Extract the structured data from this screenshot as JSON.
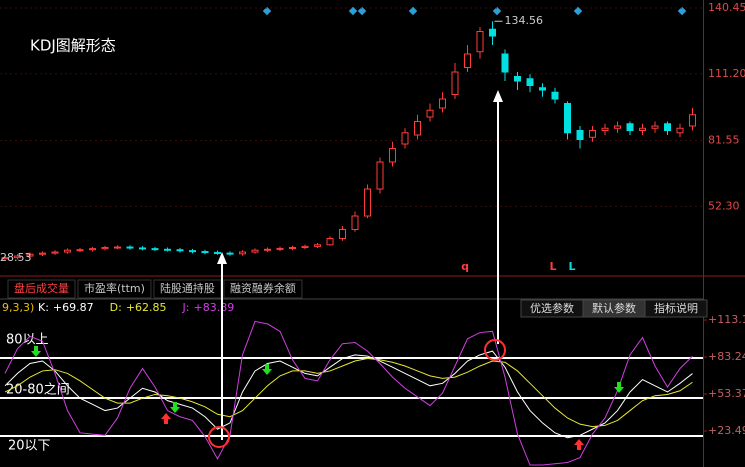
{
  "chart_data": [
    {
      "type": "candlestick",
      "title": "KDJ图解形态",
      "ylim": [
        24,
        144
      ],
      "yticks": [
        140.45,
        {
          "value": 111.2,
          "label": "111.20"
        },
        81.55,
        {
          "value": 52.3,
          "label": "52.30"
        }
      ],
      "grid": true,
      "up_color": "#ff3b3b",
      "down_color": "#00e0e0",
      "candles": {
        "open": [
          29,
          29.5,
          30.2,
          31,
          31.5,
          32,
          32.8,
          33,
          33.5,
          34,
          34.2,
          33.8,
          33.5,
          33.2,
          33,
          32.6,
          32.2,
          31.8,
          31.5,
          31.2,
          32,
          32.8,
          33.2,
          33.6,
          34,
          34.5,
          35.2,
          38,
          42,
          48,
          60,
          72,
          80,
          84,
          92,
          96,
          102,
          114,
          121,
          131,
          120,
          110,
          109,
          105,
          103,
          98,
          86,
          83,
          86,
          87,
          89,
          86,
          87,
          89,
          85,
          88
        ],
        "close": [
          29.5,
          30.2,
          31,
          31.5,
          32,
          32.8,
          33,
          33.5,
          34,
          34.2,
          33.8,
          33.5,
          33.2,
          33,
          32.6,
          32.2,
          31.8,
          31.5,
          31.2,
          32,
          32.8,
          33.2,
          33.6,
          34,
          34.5,
          35.2,
          38,
          42,
          48,
          60,
          72,
          78,
          85,
          90,
          95,
          100,
          112,
          120,
          130,
          128,
          112,
          108,
          106,
          104,
          100,
          85,
          82,
          86,
          87,
          88,
          86,
          87,
          88,
          86,
          87,
          93
        ],
        "high": [
          30.3,
          31,
          31.8,
          32.3,
          32.8,
          33.6,
          33.8,
          34.3,
          34.8,
          35,
          35,
          34.6,
          34.3,
          34,
          33.8,
          33.4,
          33,
          32.6,
          32.3,
          32.8,
          33.6,
          34,
          34.4,
          34.8,
          35.3,
          36,
          39,
          43.5,
          50,
          62,
          74,
          81,
          87,
          93,
          98,
          103,
          116,
          124,
          132,
          134.56,
          122,
          112,
          111,
          107,
          105,
          99,
          88,
          88,
          89,
          90,
          90,
          89,
          90,
          90,
          89,
          96
        ],
        "low": [
          28.53,
          28.7,
          29.4,
          30.2,
          30.7,
          31.2,
          32,
          32.2,
          32.7,
          33.2,
          33,
          32.7,
          32.4,
          32.2,
          31.8,
          31.4,
          31,
          30.7,
          30.4,
          30.4,
          31.2,
          32,
          32.4,
          32.8,
          33.2,
          33.7,
          34.8,
          37,
          41,
          47,
          58,
          70,
          78,
          82,
          90,
          94,
          100,
          112,
          118,
          124,
          108,
          104,
          103,
          101,
          98,
          82,
          78,
          81,
          84,
          85,
          84,
          84,
          85,
          84,
          83,
          86
        ]
      },
      "signals": [
        "q",
        "L",
        "L"
      ]
    },
    {
      "type": "line",
      "params": "9,3,3)",
      "tabs": [
        "盘后成交量",
        "市盈率(ttm)",
        "陆股通持股",
        "融资融券余额"
      ],
      "buttons": [
        "优选参数",
        "默认参数",
        "指标说明"
      ],
      "zones": [
        "80以上",
        "20-80之间",
        "20以下"
      ],
      "ylim": [
        -5.6,
        118.8
      ],
      "yticks": [
        {
          "value": 113.1,
          "label": "+113.1"
        },
        {
          "value": 83.24,
          "label": "+83.24"
        },
        {
          "value": 53.37,
          "label": "+53.37"
        },
        {
          "value": 23.49,
          "label": "+23.49"
        }
      ],
      "series": [
        {
          "name": "K:",
          "readout": "+69.87",
          "color": "#ffffff",
          "values": [
            60,
            70,
            78,
            80,
            72,
            60,
            50,
            45,
            40,
            42,
            50,
            58,
            55,
            48,
            45,
            42,
            35,
            25,
            30,
            55,
            72,
            78,
            80,
            75,
            70,
            68,
            75,
            82,
            85,
            84,
            80,
            75,
            70,
            65,
            60,
            62,
            70,
            80,
            85,
            88,
            75,
            55,
            40,
            30,
            22,
            18,
            20,
            25,
            30,
            40,
            55,
            65,
            60,
            55,
            62,
            69.87
          ]
        },
        {
          "name": "D:",
          "readout": "+62.85",
          "color": "#e8e830",
          "values": [
            55,
            60,
            67,
            72,
            73,
            70,
            64,
            57,
            50,
            46,
            46,
            50,
            53,
            52,
            50,
            47,
            43,
            37,
            35,
            40,
            50,
            60,
            68,
            72,
            72,
            70,
            72,
            76,
            80,
            82,
            81,
            79,
            76,
            72,
            68,
            66,
            67,
            71,
            76,
            80,
            79,
            72,
            62,
            52,
            42,
            34,
            29,
            27,
            28,
            32,
            40,
            48,
            52,
            53,
            56,
            62.85
          ]
        },
        {
          "name": "J:",
          "readout": "+83.89",
          "color": "#d040e0",
          "values": [
            70,
            90,
            100,
            96,
            70,
            40,
            22,
            21,
            20,
            34,
            58,
            74,
            59,
            40,
            35,
            32,
            19,
            1,
            20,
            85,
            112,
            110,
            104,
            81,
            66,
            64,
            81,
            94,
            95,
            88,
            78,
            67,
            58,
            51,
            44,
            54,
            76,
            98,
            103,
            104,
            67,
            21,
            -4,
            -4,
            -3,
            -2,
            2,
            21,
            34,
            56,
            85,
            99,
            76,
            59,
            74,
            83.89
          ]
        }
      ]
    }
  ]
}
